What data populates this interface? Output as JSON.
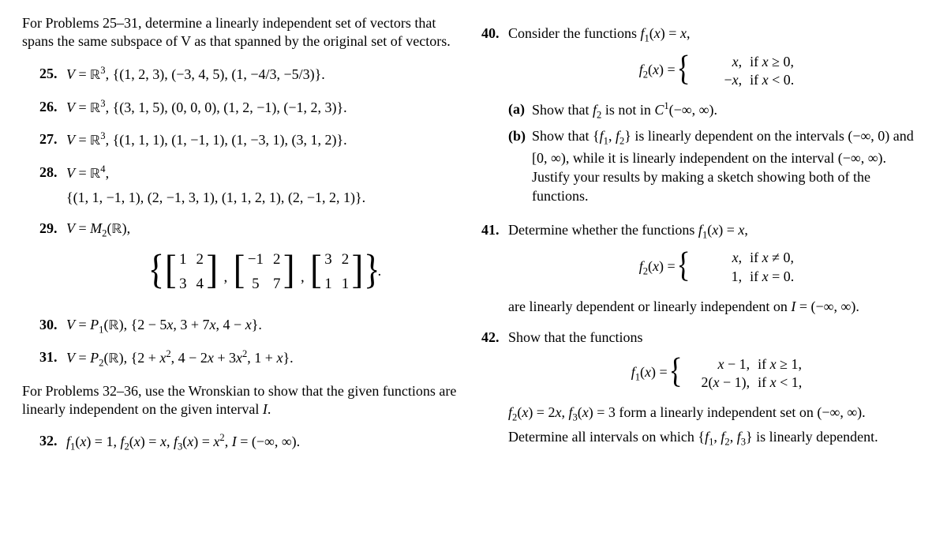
{
  "left": {
    "instr1": "For Problems 25–31, determine a linearly independent set of vectors that spans the same subspace of V as that spanned by the original set of vectors.",
    "p25": {
      "num": "25.",
      "body_html": "<span class='mi'>V</span> = <span class='bb'>ℝ</span><span class='sup'>3</span>, {(1, 2, 3), (−3, 4, 5), (1, −4/3, −5/3)}."
    },
    "p26": {
      "num": "26.",
      "body_html": "<span class='mi'>V</span> = <span class='bb'>ℝ</span><span class='sup'>3</span>, {(3, 1, 5), (0, 0, 0), (1, 2, −1), (−1, 2, 3)}."
    },
    "p27": {
      "num": "27.",
      "body_html": "<span class='mi'>V</span> = <span class='bb'>ℝ</span><span class='sup'>3</span>, {(1, 1, 1), (1, −1, 1), (1, −3, 1), (3, 1, 2)}."
    },
    "p28": {
      "num": "28.",
      "line1_html": "<span class='mi'>V</span> = <span class='bb'>ℝ</span><span class='sup'>4</span>,",
      "line2": "{(1, 1, −1, 1), (2, −1, 3, 1), (1, 1, 2, 1), (2, −1, 2, 1)}."
    },
    "p29": {
      "num": "29.",
      "body_html": "<span class='mi'>V</span> = <span class='mi'>M</span><span class='sub'>2</span>(<span class='bb'>ℝ</span>),",
      "mats": [
        {
          "cells": [
            "1",
            "2",
            "3",
            "4"
          ]
        },
        {
          "cells": [
            "−1",
            "2",
            "5",
            "7"
          ]
        },
        {
          "cells": [
            "3",
            "2",
            "1",
            "1"
          ]
        }
      ]
    },
    "p30": {
      "num": "30.",
      "body_html": "<span class='mi'>V</span> = <span class='mi'>P</span><span class='sub'>1</span>(<span class='bb'>ℝ</span>), {2 − 5<span class='mi'>x</span>, 3 + 7<span class='mi'>x</span>, 4 − <span class='mi'>x</span>}."
    },
    "p31": {
      "num": "31.",
      "body_html": "<span class='mi'>V</span> = <span class='mi'>P</span><span class='sub'>2</span>(<span class='bb'>ℝ</span>), {2 + <span class='mi'>x</span><span class='sup'>2</span>, 4 − 2<span class='mi'>x</span> + 3<span class='mi'>x</span><span class='sup'>2</span>, 1 + <span class='mi'>x</span>}."
    },
    "instr2_html": "For Problems 32–36, use the Wronskian to show that the given functions are linearly independent on the given interval <span class='mi'>I</span>.",
    "p32": {
      "num": "32.",
      "body_html": "<span class='mi'>f</span><span class='sub'>1</span>(<span class='mi'>x</span>) = 1, <span class='mi'>f</span><span class='sub'>2</span>(<span class='mi'>x</span>) = <span class='mi'>x</span>, <span class='mi'>f</span><span class='sub'>3</span>(<span class='mi'>x</span>) = <span class='mi'>x</span><span class='sup'>2</span>, <span class='mi'>I</span> = (−∞, ∞)."
    }
  },
  "right": {
    "p40": {
      "num": "40.",
      "intro_html": "Consider the functions <span class='mi'>f</span><span class='sub'>1</span>(<span class='mi'>x</span>) = <span class='mi'>x</span>,",
      "f2_lhs_html": "<span class='mi'>f</span><span class='sub'>2</span>(<span class='mi'>x</span>) = ",
      "cases": [
        {
          "val_html": "<span class='mi'>x</span>,",
          "cond_html": "if <span class='mi'>x</span> ≥ 0,"
        },
        {
          "val_html": "−<span class='mi'>x</span>,",
          "cond_html": "if <span class='mi'>x</span> &lt; 0."
        }
      ],
      "a": {
        "num": "(a)",
        "body_html": "Show that <span class='mi'>f</span><span class='sub'>2</span> is not in <span class='mi'>C</span><span class='sup'>1</span>(−∞, ∞)."
      },
      "b": {
        "num": "(b)",
        "body_html": "Show that {<span class='mi'>f</span><span class='sub'>1</span>, <span class='mi'>f</span><span class='sub'>2</span>} is linearly dependent on the intervals (−∞, 0) and [0, ∞), while it is linearly independent on the interval (−∞, ∞). Justify your results by making a sketch showing both of the functions."
      }
    },
    "p41": {
      "num": "41.",
      "intro_html": "Determine whether the functions <span class='mi'>f</span><span class='sub'>1</span>(<span class='mi'>x</span>) = <span class='mi'>x</span>,",
      "f2_lhs_html": "<span class='mi'>f</span><span class='sub'>2</span>(<span class='mi'>x</span>) = ",
      "cases": [
        {
          "val_html": "<span class='mi'>x</span>,",
          "cond_html": "if <span class='mi'>x</span> ≠ 0,"
        },
        {
          "val_html": "1,",
          "cond_html": "if <span class='mi'>x</span> = 0."
        }
      ],
      "tail_html": "are linearly dependent or linearly independent on <span class='mi'>I</span> = (−∞, ∞)."
    },
    "p42": {
      "num": "42.",
      "intro": "Show that the functions",
      "f1_lhs_html": "<span class='mi'>f</span><span class='sub'>1</span>(<span class='mi'>x</span>) = ",
      "cases": [
        {
          "val_html": "<span class='mi'>x</span> − 1,",
          "cond_html": "if <span class='mi'>x</span> ≥ 1,"
        },
        {
          "val_html": "2(<span class='mi'>x</span> − 1),",
          "cond_html": "if <span class='mi'>x</span> &lt; 1,"
        }
      ],
      "tail_html": "<span class='mi'>f</span><span class='sub'>2</span>(<span class='mi'>x</span>) = 2<span class='mi'>x</span>, <span class='mi'>f</span><span class='sub'>3</span>(<span class='mi'>x</span>) = 3 form a linearly independent set on (−∞, ∞). Determine all intervals on which {<span class='mi'>f</span><span class='sub'>1</span>, <span class='mi'>f</span><span class='sub'>2</span>, <span class='mi'>f</span><span class='sub'>3</span>} is linearly dependent."
    }
  }
}
